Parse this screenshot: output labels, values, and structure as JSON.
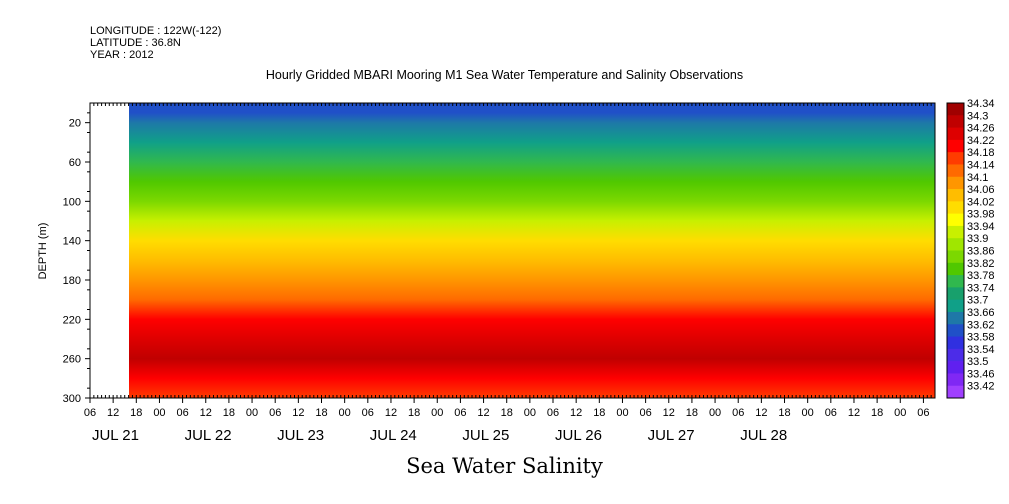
{
  "header": {
    "longitude": "LONGITUDE : 122W(-122)",
    "latitude": "LATITUDE : 36.8N",
    "year": "YEAR : 2012"
  },
  "chart_data": {
    "type": "heatmap",
    "title": "Hourly Gridded MBARI Mooring M1 Sea Water Temperature and Salinity Observations",
    "footer": "Sea Water Salinity",
    "ylabel": "DEPTH (m)",
    "ylim": [
      300,
      0
    ],
    "y_ticks": [
      "20",
      "60",
      "100",
      "140",
      "180",
      "220",
      "260",
      "300"
    ],
    "x_hour_ticks": [
      "06",
      "12",
      "18",
      "00",
      "06",
      "12",
      "18",
      "00",
      "06",
      "12",
      "18",
      "00",
      "06",
      "12",
      "18",
      "00",
      "06",
      "12",
      "18",
      "00",
      "06",
      "12",
      "18",
      "00",
      "06",
      "12",
      "18",
      "00",
      "06",
      "12",
      "18",
      "00",
      "06",
      "12",
      "18",
      "00",
      "06"
    ],
    "day_labels": [
      "JUL 21",
      "JUL 22",
      "JUL 23",
      "JUL 24",
      "JUL 25",
      "JUL 26",
      "JUL 27",
      "JUL 28"
    ],
    "data_start": "JUL 21 13:00",
    "colorbar": {
      "levels": [
        "34.34",
        "34.3",
        "34.26",
        "34.22",
        "34.18",
        "34.14",
        "34.1",
        "34.06",
        "34.02",
        "33.98",
        "33.94",
        "33.9",
        "33.86",
        "33.82",
        "33.78",
        "33.74",
        "33.7",
        "33.66",
        "33.62",
        "33.58",
        "33.54",
        "33.5",
        "33.46",
        "33.42"
      ],
      "colors": [
        "#a00000",
        "#c00000",
        "#de0000",
        "#ff0000",
        "#ff3c00",
        "#ff6a00",
        "#ff9600",
        "#ffbd00",
        "#ffdd00",
        "#ffff00",
        "#c8f000",
        "#a0e600",
        "#7cd800",
        "#50c800",
        "#30b84e",
        "#18a06c",
        "#10a088",
        "#1e78a8",
        "#2050c8",
        "#3030e0",
        "#4c2ce8",
        "#6020f0",
        "#8028f4",
        "#a040ff"
      ]
    },
    "depth_profile": [
      {
        "depth": 10,
        "salinity": 33.62
      },
      {
        "depth": 20,
        "salinity": 33.66
      },
      {
        "depth": 40,
        "salinity": 33.72
      },
      {
        "depth": 60,
        "salinity": 33.78
      },
      {
        "depth": 80,
        "salinity": 33.84
      },
      {
        "depth": 100,
        "salinity": 33.88
      },
      {
        "depth": 120,
        "salinity": 33.94
      },
      {
        "depth": 140,
        "salinity": 34.02
      },
      {
        "depth": 160,
        "salinity": 34.08
      },
      {
        "depth": 180,
        "salinity": 34.12
      },
      {
        "depth": 200,
        "salinity": 34.16
      },
      {
        "depth": 220,
        "salinity": 34.22
      },
      {
        "depth": 240,
        "salinity": 34.28
      },
      {
        "depth": 260,
        "salinity": 34.3
      },
      {
        "depth": 280,
        "salinity": 34.24
      },
      {
        "depth": 300,
        "salinity": 34.2
      }
    ]
  }
}
